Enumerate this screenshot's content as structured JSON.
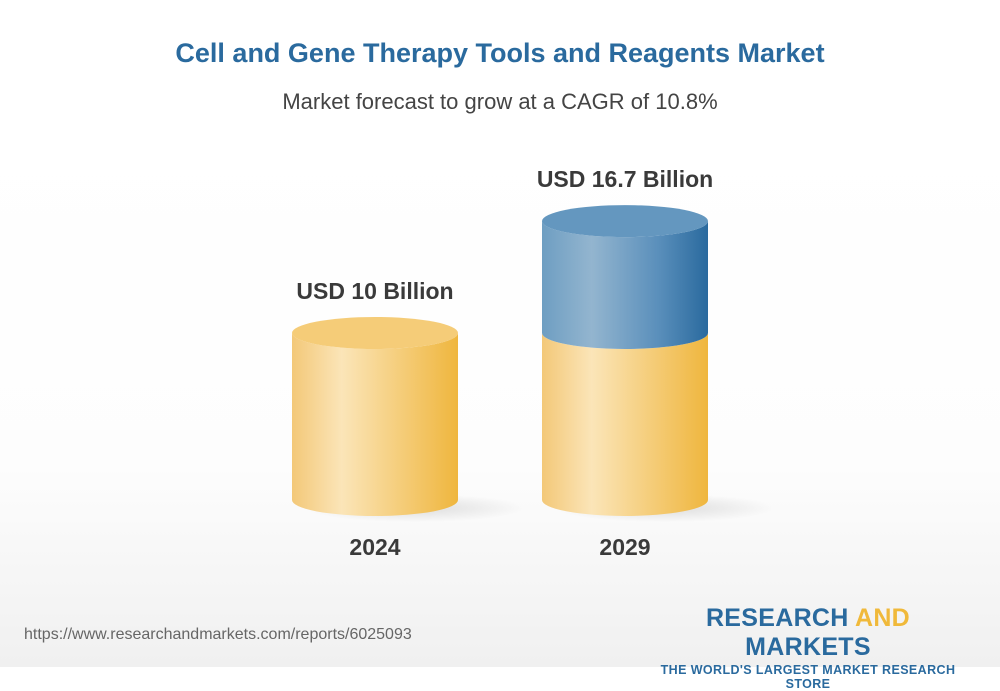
{
  "title": "Cell and Gene Therapy Tools and Reagents Market",
  "subtitle": "Market forecast to grow at a CAGR of 10.8%",
  "url": "https://www.researchandmarkets.com/reports/6025093",
  "logo": {
    "word1": "RESEARCH",
    "word2": "AND",
    "word3": "MARKETS",
    "tagline": "THE WORLD'S LARGEST MARKET RESEARCH STORE"
  },
  "colors": {
    "base": "#f0b93a",
    "growth": "#2a6a9e",
    "title": "#2a6a9e"
  },
  "chart_data": {
    "type": "bar",
    "style": "3d-cylinder",
    "categories": [
      "2024",
      "2029"
    ],
    "values": [
      10,
      16.7
    ],
    "unit": "USD Billion",
    "data_labels": [
      "USD 10 Billion",
      "USD 16.7 Billion"
    ],
    "cagr": "10.8%",
    "grid": false
  }
}
